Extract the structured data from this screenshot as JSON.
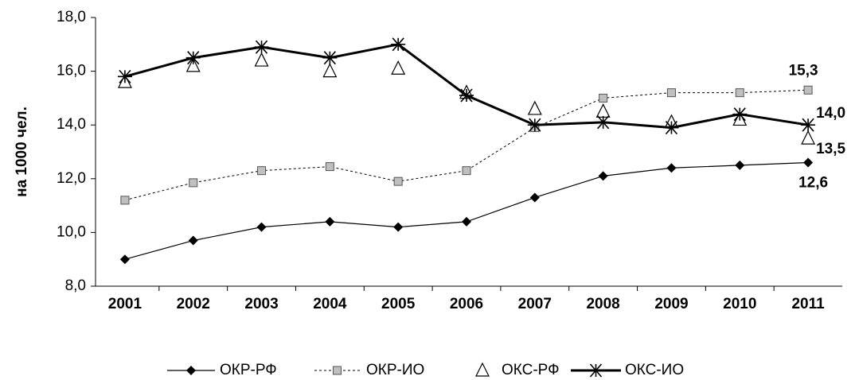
{
  "chart_data": {
    "type": "line",
    "y_label": "на 1000 чел.",
    "categories": [
      "2001",
      "2002",
      "2003",
      "2004",
      "2005",
      "2006",
      "2007",
      "2008",
      "2009",
      "2010",
      "2011"
    ],
    "ylim": [
      8,
      18
    ],
    "yticks": [
      {
        "value": 8,
        "label": "8,0"
      },
      {
        "value": 10,
        "label": "10,0"
      },
      {
        "value": 12,
        "label": "12,0"
      },
      {
        "value": 14,
        "label": "14,0"
      },
      {
        "value": 16,
        "label": "16,0"
      },
      {
        "value": 18,
        "label": "18,0"
      }
    ],
    "legend": "bottom",
    "series": [
      {
        "name": "ОКР-РФ",
        "color": "#000000",
        "marker": "diamond",
        "line": "solid",
        "values": [
          9.0,
          9.7,
          10.2,
          10.4,
          10.2,
          10.4,
          11.3,
          12.1,
          12.4,
          12.5,
          12.6
        ],
        "value_labels": [
          null,
          null,
          null,
          null,
          null,
          null,
          null,
          null,
          null,
          null,
          "12,6"
        ]
      },
      {
        "name": "ОКР-ИО",
        "color": "#000000",
        "marker": "square",
        "line": "dashed",
        "values": [
          11.2,
          11.85,
          12.3,
          12.45,
          11.9,
          12.3,
          13.9,
          15.0,
          15.2,
          15.2,
          15.3
        ],
        "value_labels": [
          null,
          null,
          null,
          null,
          null,
          null,
          null,
          null,
          null,
          null,
          "15,3"
        ]
      },
      {
        "name": "ОКС-РФ",
        "color": "#000000",
        "marker": "triangle",
        "line": "none",
        "values": [
          15.6,
          16.2,
          16.4,
          16.0,
          16.1,
          15.2,
          14.6,
          14.5,
          14.1,
          14.2,
          13.5
        ],
        "value_labels": [
          null,
          null,
          null,
          null,
          null,
          null,
          null,
          null,
          null,
          null,
          "13,5"
        ]
      },
      {
        "name": "ОКС-ИО",
        "color": "#000000",
        "marker": "star",
        "line": "bold",
        "values": [
          15.8,
          16.5,
          16.9,
          16.5,
          17.0,
          15.1,
          14.0,
          14.1,
          13.9,
          14.4,
          14.0
        ],
        "value_labels": [
          null,
          null,
          null,
          null,
          null,
          null,
          null,
          null,
          null,
          null,
          "14,0"
        ]
      }
    ]
  }
}
